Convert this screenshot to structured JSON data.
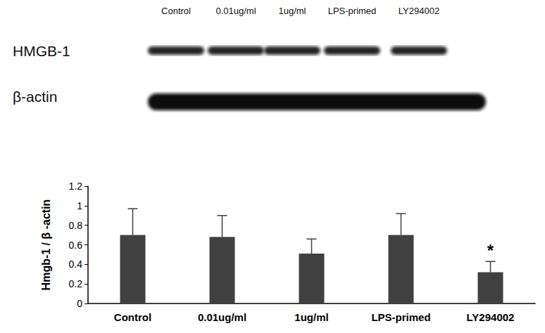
{
  "blot": {
    "lanes": [
      "Control",
      "0.01ug/ml",
      "1ug/ml",
      "LPS-primed",
      "LY294002"
    ],
    "rows": [
      "HMGB-1",
      "β-actin"
    ]
  },
  "chart_data": {
    "type": "bar",
    "y_label": "Hmgb-1 / β -actin",
    "categories": [
      "Control",
      "0.01ug/ml",
      "1ug/ml",
      "LPS-primed",
      "LY294002"
    ],
    "values": [
      0.7,
      0.68,
      0.51,
      0.7,
      0.32
    ],
    "error": [
      0.27,
      0.22,
      0.15,
      0.22,
      0.11
    ],
    "color": "#404040",
    "ylim": [
      0,
      1.2
    ],
    "yticks": [
      0,
      0.2,
      0.4,
      0.6,
      0.8,
      1,
      1.2
    ],
    "grid": false,
    "annotations": [
      {
        "category": "LY294002",
        "text": "*"
      }
    ]
  }
}
